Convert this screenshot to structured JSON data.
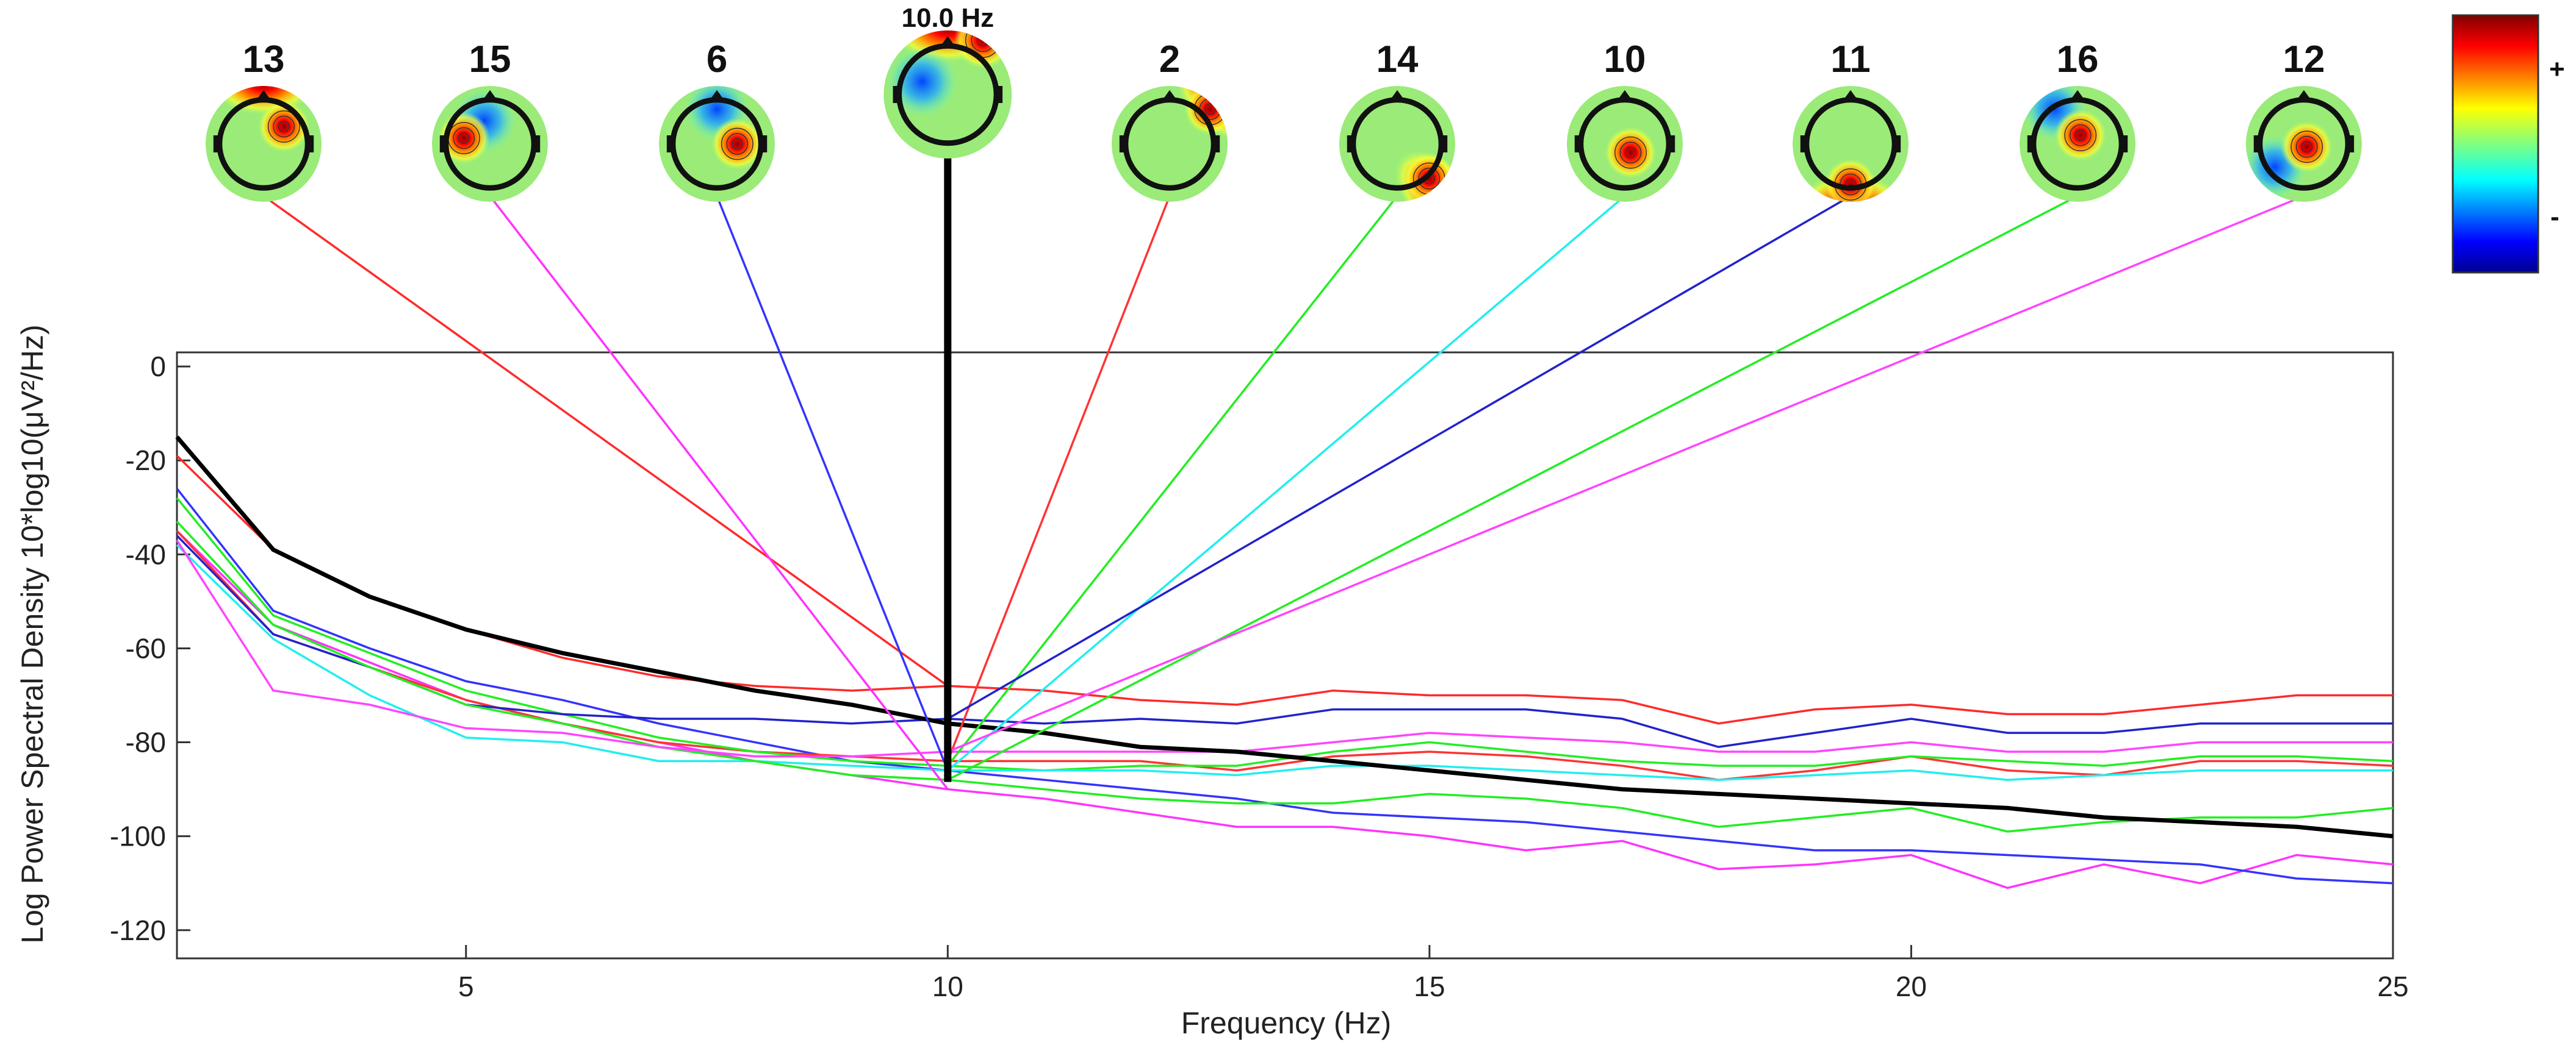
{
  "chart_data": {
    "type": "line",
    "xlabel": "Frequency (Hz)",
    "ylabel": "Log Power Spectral Density 10*log10(μV²/Hz)",
    "xlim": [
      2,
      25
    ],
    "ylim": [
      -126,
      3
    ],
    "xticks": [
      5,
      10,
      15,
      20,
      25
    ],
    "yticks": [
      0,
      -20,
      -40,
      -60,
      -80,
      -100,
      -120
    ],
    "grid": false,
    "x": [
      2,
      3,
      4,
      5,
      6,
      7,
      8,
      9,
      10,
      11,
      12,
      13,
      14,
      15,
      16,
      17,
      18,
      19,
      20,
      21,
      22,
      23,
      24,
      25
    ],
    "marked_frequency_label": "10.0 Hz",
    "marked_frequency": 10,
    "colorbar": {
      "plus_label": "+",
      "minus_label": "-"
    },
    "components": [
      {
        "label": "13",
        "color": "#ff2a2a",
        "values": [
          -19,
          -39,
          -49,
          -56,
          -62,
          -66,
          -68,
          -69,
          -68,
          -69,
          -71,
          -72,
          -69,
          -70,
          -70,
          -71,
          -76,
          -73,
          -72,
          -74,
          -74,
          -72,
          -70,
          -70
        ]
      },
      {
        "label": "15",
        "color": "#ff33ff",
        "values": [
          -35,
          -55,
          -63,
          -71,
          -76,
          -80,
          -84,
          -87,
          -90,
          -92,
          -95,
          -98,
          -98,
          -100,
          -103,
          -101,
          -107,
          -106,
          -104,
          -111,
          -106,
          -110,
          -104,
          -106
        ]
      },
      {
        "label": "6",
        "color": "#3333ff",
        "values": [
          -26,
          -52,
          -60,
          -67,
          -71,
          -76,
          -80,
          -84,
          -86,
          -88,
          -90,
          -92,
          -95,
          -96,
          -97,
          -99,
          -101,
          -103,
          -103,
          -104,
          -105,
          -106,
          -109,
          -110
        ]
      },
      {
        "label": "2",
        "color": "#ff3333",
        "values": [
          -35,
          -57,
          -64,
          -71,
          -76,
          -80,
          -82,
          -83,
          -84,
          -84,
          -84,
          -86,
          -83,
          -82,
          -83,
          -85,
          -88,
          -86,
          -83,
          -86,
          -87,
          -84,
          -84,
          -85
        ]
      },
      {
        "label": "14",
        "color": "#22ee22",
        "values": [
          -28,
          -53,
          -61,
          -69,
          -74,
          -79,
          -82,
          -84,
          -85,
          -86,
          -85,
          -85,
          -82,
          -80,
          -82,
          -84,
          -85,
          -85,
          -83,
          -84,
          -85,
          -83,
          -83,
          -84
        ]
      },
      {
        "label": "10",
        "color": "#22eeee",
        "values": [
          -38,
          -58,
          -70,
          -79,
          -80,
          -84,
          -84,
          -85,
          -86,
          -86,
          -86,
          -87,
          -85,
          -85,
          -86,
          -87,
          -88,
          -87,
          -86,
          -88,
          -87,
          -86,
          -86,
          -86
        ]
      },
      {
        "label": "11",
        "color": "#2222cc",
        "values": [
          -36,
          -57,
          -64,
          -72,
          -74,
          -75,
          -75,
          -76,
          -75,
          -76,
          -75,
          -76,
          -73,
          -73,
          -73,
          -75,
          -81,
          -78,
          -75,
          -78,
          -78,
          -76,
          -76,
          -76
        ]
      },
      {
        "label": "16",
        "color": "#22ee22",
        "values": [
          -33,
          -55,
          -64,
          -72,
          -76,
          -81,
          -84,
          -87,
          -88,
          -90,
          -92,
          -93,
          -93,
          -91,
          -92,
          -94,
          -98,
          -96,
          -94,
          -99,
          -97,
          -96,
          -96,
          -94
        ]
      },
      {
        "label": "12",
        "color": "#ff44ff",
        "values": [
          -37,
          -69,
          -72,
          -77,
          -78,
          -81,
          -83,
          -83,
          -82,
          -82,
          -82,
          -82,
          -80,
          -78,
          -79,
          -80,
          -82,
          -82,
          -80,
          -82,
          -82,
          -80,
          -80,
          -80
        ]
      }
    ],
    "mean": {
      "color": "#000000",
      "values": [
        -15,
        -39,
        -49,
        -56,
        -61,
        -65,
        -69,
        -72,
        -76,
        -78,
        -81,
        -82,
        -84,
        -86,
        -88,
        -90,
        -91,
        -92,
        -93,
        -94,
        -96,
        -97,
        -98,
        -100
      ]
    },
    "topomaps": [
      {
        "label": "13",
        "hot": [
          0.35,
          -0.3
        ],
        "cold": null,
        "edge": "top"
      },
      {
        "label": "15",
        "hot": [
          -0.45,
          -0.1
        ],
        "cold": [
          -0.1,
          -0.4
        ],
        "edge": "none"
      },
      {
        "label": "6",
        "hot": [
          0.35,
          0.0
        ],
        "cold": [
          0.0,
          -0.6
        ],
        "edge": "none"
      },
      {
        "label": "2",
        "hot": [
          0.7,
          -0.6
        ],
        "cold": null,
        "edge": "topright"
      },
      {
        "label": "14",
        "hot": [
          0.55,
          0.6
        ],
        "cold": null,
        "edge": "bottomright"
      },
      {
        "label": "10",
        "hot": [
          0.1,
          0.15
        ],
        "cold": null,
        "edge": "none"
      },
      {
        "label": "11",
        "hot": [
          0.0,
          0.7
        ],
        "cold": null,
        "edge": "bottom"
      },
      {
        "label": "16",
        "hot": [
          0.05,
          -0.15
        ],
        "cold": [
          -0.4,
          -0.6
        ],
        "edge": "none"
      },
      {
        "label": "12",
        "hot": [
          0.05,
          0.05
        ],
        "cold": [
          -0.5,
          0.4
        ],
        "edge": "none"
      }
    ]
  }
}
